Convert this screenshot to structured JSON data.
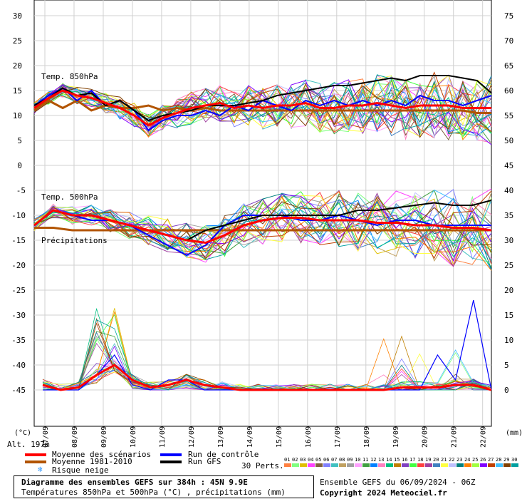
{
  "chart_data": {
    "type": "line",
    "title": "Diagramme des ensembles GEFS sur 384h : 45N 9.9E",
    "subtitle": "Températures 850hPa et 500hPa (°C) , précipitations (mm)",
    "panels": [
      {
        "label": "Temp. 850hPa",
        "left_ticks": [
          30,
          25,
          20,
          15,
          10,
          5,
          0
        ],
        "right_ticks": [
          75,
          70,
          65,
          60,
          55,
          50,
          45
        ]
      },
      {
        "label": "Temp. 500hPa",
        "left_ticks": [
          -5,
          -10,
          -15,
          -20,
          -25,
          -30,
          -35,
          -40,
          -45
        ],
        "right_ticks": [
          40,
          35,
          30,
          25,
          20,
          15,
          10,
          5,
          0
        ]
      },
      {
        "label": "Précipitations"
      }
    ],
    "x_ticks": [
      "07/09",
      "08/09",
      "09/09",
      "10/09",
      "11/09",
      "12/09",
      "13/09",
      "14/09",
      "15/09",
      "16/09",
      "17/09",
      "18/09",
      "19/09",
      "20/09",
      "21/09",
      "22/09"
    ],
    "left_unit": "(°C)",
    "right_unit": "(mm)",
    "altitude": "Alt. 197m",
    "series": [
      {
        "name": "Moyenne des scénarios",
        "color": "#ff0000",
        "t850": [
          11.5,
          13.5,
          15,
          14,
          13.5,
          12.5,
          11.5,
          10,
          8,
          9.5,
          10.5,
          11.5,
          12,
          12.5,
          11.5,
          12,
          11.5,
          12,
          12,
          12.5,
          11.5,
          11.5,
          12,
          12,
          12.5,
          12,
          11.5,
          12,
          12,
          12,
          11.5,
          11.5,
          11.5
        ],
        "t500": [
          -12,
          -9,
          -10,
          -10,
          -11,
          -12,
          -13,
          -14,
          -15,
          -15.5,
          -14,
          -12,
          -11,
          -10.5,
          -10.5,
          -11,
          -11,
          -11,
          -11.5,
          -11.5,
          -12,
          -12,
          -12.5,
          -12.5,
          -13
        ],
        "precip": [
          1,
          0,
          0.5,
          3,
          5,
          2,
          0.5,
          1,
          2,
          1,
          0.5,
          0,
          0,
          0,
          0,
          0,
          0,
          0,
          0,
          0,
          0.5,
          0.5,
          0.5,
          1,
          1,
          0
        ]
      },
      {
        "name": "Moyenne 1981-2010",
        "color": "#b25400",
        "t850": [
          11,
          13,
          11.5,
          13,
          11,
          12,
          11.5,
          11.5,
          12,
          11,
          11.5,
          11,
          11.5,
          11,
          11,
          11,
          11,
          11,
          11,
          11,
          11,
          11,
          11,
          11,
          11,
          11,
          11,
          11,
          11,
          11,
          11,
          10.5,
          10.5
        ],
        "t500": [
          -12.5,
          -12.5,
          -13,
          -13,
          -13,
          -13,
          -13,
          -13,
          -13,
          -13,
          -13,
          -13,
          -13,
          -13,
          -13,
          -13,
          -13,
          -13,
          -13,
          -13,
          -13,
          -13,
          -13,
          -13,
          -13
        ]
      },
      {
        "name": "Run de contrôle",
        "color": "#0000ff",
        "t850": [
          12,
          14,
          15.5,
          13,
          15,
          12,
          13,
          11,
          7,
          9,
          10,
          10,
          11,
          10,
          12,
          11,
          13,
          12,
          11,
          13,
          12,
          13,
          12,
          13,
          12,
          13,
          12,
          14,
          13,
          13,
          12,
          13,
          14
        ],
        "t500": [
          -12,
          -9,
          -10,
          -11,
          -11,
          -12,
          -14,
          -16,
          -18,
          -16,
          -12,
          -10,
          -10,
          -10,
          -11,
          -11,
          -10,
          -11,
          -12,
          -11,
          -11,
          -12,
          -12,
          -12,
          -12
        ],
        "precip": [
          0,
          0,
          0,
          3,
          7,
          1,
          0,
          2,
          2,
          0,
          0,
          0,
          0,
          0,
          0,
          0,
          0,
          0,
          0,
          0,
          0,
          0,
          7,
          2,
          18,
          0
        ]
      },
      {
        "name": "Run GFS",
        "color": "#000000",
        "t850": [
          12,
          13.5,
          15.5,
          14,
          14.5,
          12,
          13,
          11,
          9,
          10,
          10.5,
          11,
          12,
          12,
          12,
          12.5,
          13,
          14,
          14.5,
          15,
          15.5,
          16,
          16,
          16.5,
          17,
          17.5,
          17,
          18,
          18,
          18,
          17.5,
          17,
          14.5
        ],
        "t500": [
          -12,
          -9,
          -10,
          -10,
          -11,
          -12,
          -13,
          -14,
          -15,
          -13,
          -12,
          -11,
          -10,
          -10,
          -10,
          -10,
          -10,
          -9,
          -9,
          -8.5,
          -8,
          -7.5,
          -8,
          -8,
          -7
        ]
      }
    ],
    "legend": [
      {
        "name": "Moyenne des scénarios",
        "color": "#ff0000"
      },
      {
        "name": "Moyenne 1981-2010",
        "color": "#b25400"
      },
      {
        "name": "Risque neige",
        "color": "#3399ff"
      },
      {
        "name": "Run de contrôle",
        "color": "#0000ff"
      },
      {
        "name": "Run GFS",
        "color": "#000000"
      }
    ],
    "perts_label": "30 Perts.",
    "perts_numbers": [
      "01",
      "02",
      "03",
      "04",
      "05",
      "06",
      "07",
      "08",
      "09",
      "10",
      "11",
      "12",
      "13",
      "14",
      "15",
      "16",
      "17",
      "18",
      "19",
      "20",
      "21",
      "22",
      "23",
      "24",
      "25",
      "26",
      "27",
      "28",
      "29",
      "30"
    ],
    "perts_colors": [
      "#ff8040",
      "#80ff80",
      "#e0c000",
      "#ff40ff",
      "#806040",
      "#8080ff",
      "#40c0c0",
      "#c0a060",
      "#a0a0a0",
      "#ffa0ff",
      "#40a040",
      "#0080ff",
      "#ff80c0",
      "#00c080",
      "#c08000",
      "#8040c0",
      "#40ff40",
      "#ff4040",
      "#a040a0",
      "#4080c0",
      "#ffff40",
      "#c0c0ff",
      "#008080",
      "#ff8000",
      "#a0ff40",
      "#8000ff",
      "#c04000",
      "#40c0ff",
      "#804000",
      "#00a0a0"
    ]
  },
  "footer": {
    "box_title": "Diagramme des ensembles GEFS sur 384h : 45N 9.9E",
    "box_subtitle": "Températures 850hPa et 500hPa (°C) , précipitations (mm)",
    "run": "Ensemble GEFS du 06/09/2024 - 06Z",
    "copyright": "Copyright 2024 Meteociel.fr"
  }
}
